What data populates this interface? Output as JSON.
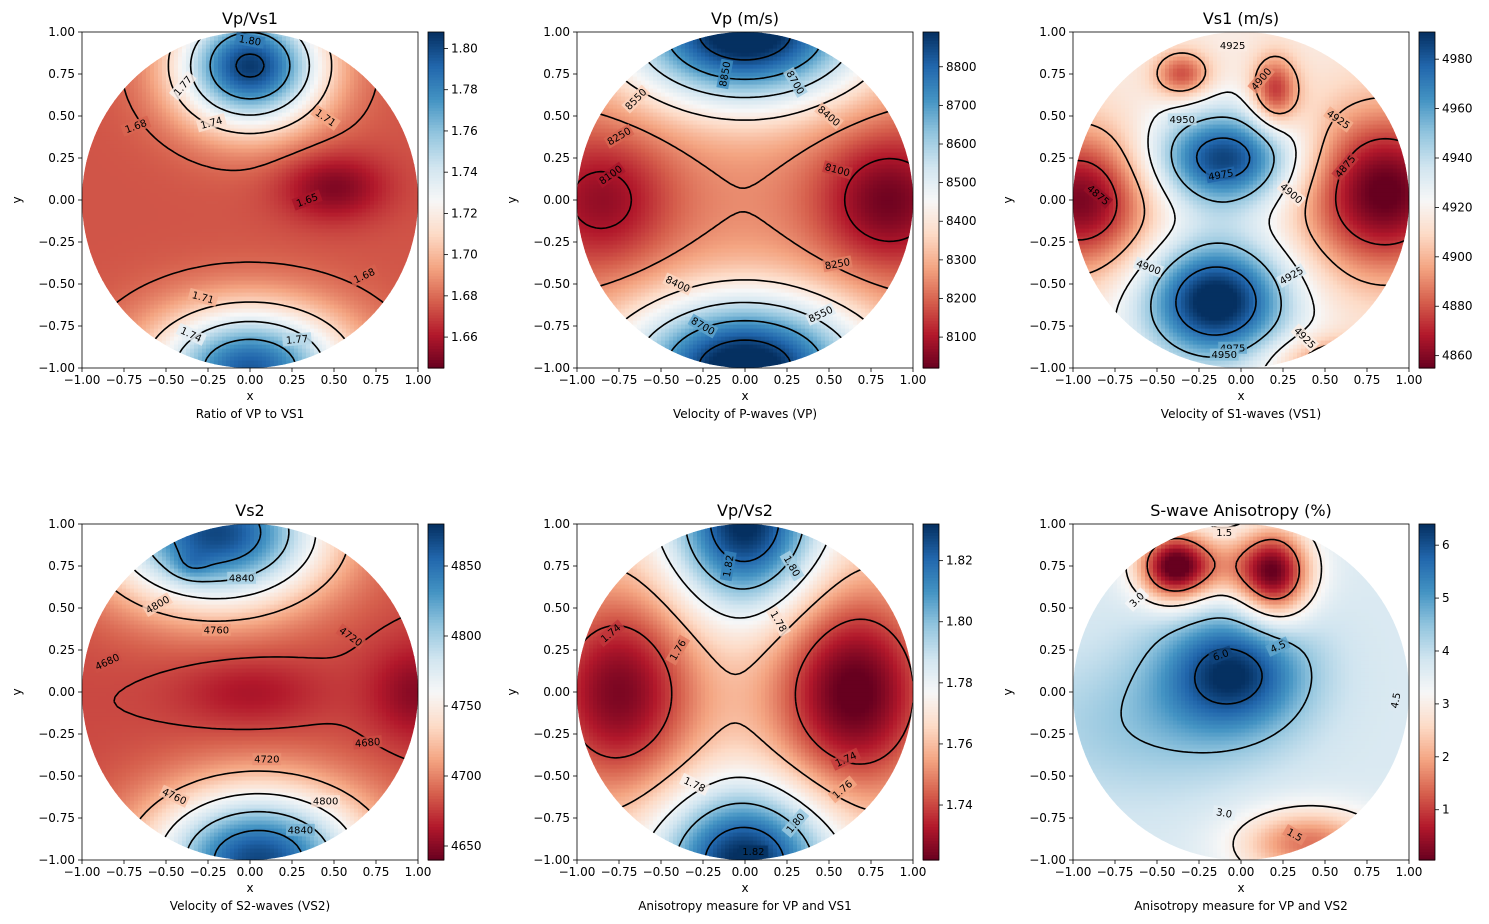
{
  "colormap": [
    "#67001f",
    "#b2182b",
    "#d6604d",
    "#f4a582",
    "#fddbc7",
    "#f7f7f7",
    "#d1e5f0",
    "#92c5de",
    "#4393c3",
    "#2166ac",
    "#053061"
  ],
  "chart_data": [
    {
      "type": "heatmap",
      "title": "Vp/Vs1",
      "xlabel": "x",
      "ylabel": "y",
      "caption": "Ratio of VP to VS1",
      "xlim": [
        -1,
        1
      ],
      "ylim": [
        -1,
        1
      ],
      "xticks": [
        "−1.00",
        "−0.75",
        "−0.50",
        "−0.25",
        "0.00",
        "0.25",
        "0.50",
        "0.75",
        "1.00"
      ],
      "yticks": [
        "−1.00",
        "−0.75",
        "−0.50",
        "−0.25",
        "0.00",
        "0.25",
        "0.50",
        "0.75",
        "1.00"
      ],
      "colorbar": {
        "min": 1.645,
        "max": 1.808,
        "ticks": [
          1.66,
          1.68,
          1.7,
          1.72,
          1.74,
          1.76,
          1.78,
          1.8
        ],
        "labels": [
          "1.66",
          "1.68",
          "1.70",
          "1.72",
          "1.74",
          "1.76",
          "1.78",
          "1.80"
        ]
      },
      "field": {
        "base": 1.675,
        "terms": [
          [
            0,
            0.8,
            0.13,
            0.3,
            0.25
          ],
          [
            0,
            -1.0,
            0.12,
            0.4,
            0.25
          ],
          [
            0.5,
            0.08,
            -0.025,
            0.22,
            0.14
          ]
        ]
      },
      "contour_levels": [
        1.65,
        1.68,
        1.71,
        1.74,
        1.77,
        1.8
      ],
      "contour_labels": [
        {
          "text": "1.80",
          "x": 0.0,
          "y": 0.95,
          "rot": 10
        },
        {
          "text": "1.77",
          "x": -0.4,
          "y": 0.68,
          "rot": -50
        },
        {
          "text": "1.74",
          "x": -0.23,
          "y": 0.46,
          "rot": -15
        },
        {
          "text": "1.71",
          "x": 0.45,
          "y": 0.49,
          "rot": 35
        },
        {
          "text": "1.68",
          "x": -0.68,
          "y": 0.44,
          "rot": -20
        },
        {
          "text": "1.65",
          "x": 0.34,
          "y": 0.0,
          "rot": -20
        },
        {
          "text": "1.68",
          "x": 0.68,
          "y": -0.45,
          "rot": -25
        },
        {
          "text": "1.71",
          "x": -0.28,
          "y": -0.58,
          "rot": 15
        },
        {
          "text": "1.74",
          "x": -0.35,
          "y": -0.8,
          "rot": 25
        },
        {
          "text": "1.77",
          "x": 0.28,
          "y": -0.83,
          "rot": -5
        }
      ]
    },
    {
      "type": "heatmap",
      "title": "Vp (m/s)",
      "xlabel": "x",
      "ylabel": "y",
      "caption": "Velocity of P-waves (VP)",
      "xlim": [
        -1,
        1
      ],
      "ylim": [
        -1,
        1
      ],
      "xticks": [
        "−1.00",
        "−0.75",
        "−0.50",
        "−0.25",
        "0.00",
        "0.25",
        "0.50",
        "0.75",
        "1.00"
      ],
      "yticks": [
        "−1.00",
        "−0.75",
        "−0.50",
        "−0.25",
        "0.00",
        "0.25",
        "0.50",
        "0.75",
        "1.00"
      ],
      "colorbar": {
        "min": 8020,
        "max": 8890,
        "ticks": [
          8100,
          8200,
          8300,
          8400,
          8500,
          8600,
          8700,
          8800
        ],
        "labels": [
          "8100",
          "8200",
          "8300",
          "8400",
          "8500",
          "8600",
          "8700",
          "8800"
        ]
      },
      "field": {
        "base": 8250,
        "terms": [
          [
            0,
            1.0,
            700,
            0.5,
            0.3
          ],
          [
            0,
            -1.0,
            700,
            0.5,
            0.3
          ],
          [
            0.85,
            0,
            -220,
            0.3,
            0.3
          ],
          [
            -0.85,
            0,
            -180,
            0.3,
            0.3
          ]
        ]
      },
      "contour_levels": [
        8100,
        8250,
        8400,
        8550,
        8700,
        8850
      ],
      "contour_labels": [
        {
          "text": "8850",
          "x": -0.12,
          "y": 0.75,
          "rot": -80
        },
        {
          "text": "8700",
          "x": 0.3,
          "y": 0.7,
          "rot": 60
        },
        {
          "text": "8550",
          "x": -0.65,
          "y": 0.6,
          "rot": -45
        },
        {
          "text": "8400",
          "x": 0.5,
          "y": 0.5,
          "rot": 40
        },
        {
          "text": "8250",
          "x": -0.75,
          "y": 0.38,
          "rot": -30
        },
        {
          "text": "8100",
          "x": 0.55,
          "y": 0.18,
          "rot": 15
        },
        {
          "text": "8100",
          "x": -0.8,
          "y": 0.15,
          "rot": -35
        },
        {
          "text": "8400",
          "x": -0.4,
          "y": -0.5,
          "rot": 25
        },
        {
          "text": "8250",
          "x": 0.55,
          "y": -0.38,
          "rot": -10
        },
        {
          "text": "8550",
          "x": 0.45,
          "y": -0.68,
          "rot": -25
        },
        {
          "text": "8700",
          "x": -0.25,
          "y": -0.75,
          "rot": 30
        }
      ]
    },
    {
      "type": "heatmap",
      "title": "Vs1 (m/s)",
      "xlabel": "x",
      "ylabel": "y",
      "caption": "Velocity of S1-waves (VS1)",
      "xlim": [
        -1,
        1
      ],
      "ylim": [
        -1,
        1
      ],
      "xticks": [
        "−1.00",
        "−0.75",
        "−0.50",
        "−0.25",
        "0.00",
        "0.25",
        "0.50",
        "0.75",
        "1.00"
      ],
      "yticks": [
        "−1.00",
        "−0.75",
        "−0.50",
        "−0.25",
        "0.00",
        "0.25",
        "0.50",
        "0.75",
        "1.00"
      ],
      "colorbar": {
        "min": 4855,
        "max": 4991,
        "ticks": [
          4860,
          4880,
          4900,
          4920,
          4940,
          4960,
          4980
        ],
        "labels": [
          "4860",
          "4880",
          "4900",
          "4920",
          "4940",
          "4960",
          "4980"
        ]
      },
      "field": {
        "base": 4918,
        "terms": [
          [
            -0.1,
            0.25,
            70,
            0.3,
            0.2
          ],
          [
            -0.15,
            -0.6,
            80,
            0.3,
            0.25
          ],
          [
            -0.95,
            0,
            -60,
            0.3,
            0.3
          ],
          [
            0.85,
            0.05,
            -65,
            0.35,
            0.35
          ],
          [
            -0.35,
            0.75,
            -40,
            0.12,
            0.1
          ],
          [
            0.2,
            0.65,
            -45,
            0.1,
            0.15
          ],
          [
            0.55,
            -0.95,
            -30,
            0.25,
            0.1
          ]
        ]
      },
      "contour_levels": [
        4875,
        4900,
        4925,
        4950,
        4975
      ],
      "contour_labels": [
        {
          "text": "4925",
          "x": -0.05,
          "y": 0.92,
          "rot": 0
        },
        {
          "text": "4900",
          "x": 0.12,
          "y": 0.72,
          "rot": -50
        },
        {
          "text": "4950",
          "x": -0.35,
          "y": 0.48,
          "rot": 0
        },
        {
          "text": "4925",
          "x": 0.58,
          "y": 0.48,
          "rot": 35
        },
        {
          "text": "4975",
          "x": -0.12,
          "y": 0.15,
          "rot": -10
        },
        {
          "text": "4875",
          "x": 0.62,
          "y": 0.2,
          "rot": -50
        },
        {
          "text": "4900",
          "x": 0.3,
          "y": 0.04,
          "rot": 40
        },
        {
          "text": "4875",
          "x": -0.85,
          "y": 0.03,
          "rot": 40
        },
        {
          "text": "4900",
          "x": -0.55,
          "y": -0.4,
          "rot": 20
        },
        {
          "text": "4925",
          "x": 0.3,
          "y": -0.45,
          "rot": -30
        },
        {
          "text": "4975",
          "x": -0.05,
          "y": -0.88,
          "rot": 0
        },
        {
          "text": "4950",
          "x": -0.1,
          "y": -0.92,
          "rot": 0
        },
        {
          "text": "4925",
          "x": 0.38,
          "y": -0.82,
          "rot": 45
        }
      ]
    },
    {
      "type": "heatmap",
      "title": "Vs2",
      "xlabel": "x",
      "ylabel": "y",
      "caption": "Velocity of S2-waves (VS2)",
      "xlim": [
        -1,
        1
      ],
      "ylim": [
        -1,
        1
      ],
      "xticks": [
        "−1.00",
        "−0.75",
        "−0.50",
        "−0.25",
        "0.00",
        "0.25",
        "0.50",
        "0.75",
        "1.00"
      ],
      "yticks": [
        "−1.00",
        "−0.75",
        "−0.50",
        "−0.25",
        "0.00",
        "0.25",
        "0.50",
        "0.75",
        "1.00"
      ],
      "colorbar": {
        "min": 4640,
        "max": 4880,
        "ticks": [
          4650,
          4700,
          4750,
          4800,
          4850
        ],
        "labels": [
          "4650",
          "4700",
          "4750",
          "4800",
          "4850"
        ]
      },
      "field": {
        "base": 4680,
        "terms": [
          [
            -0.2,
            0.95,
            190,
            0.45,
            0.3
          ],
          [
            0.05,
            -1.0,
            190,
            0.45,
            0.3
          ],
          [
            -0.35,
            0.75,
            20,
            0.08,
            0.06
          ],
          [
            1.0,
            0,
            -30,
            0.2,
            0.2
          ],
          [
            0,
            0,
            -20,
            0.3,
            0.15
          ]
        ]
      },
      "contour_levels": [
        4680,
        4720,
        4760,
        4800,
        4840
      ],
      "contour_labels": [
        {
          "text": "4840",
          "x": -0.05,
          "y": 0.68,
          "rot": 0
        },
        {
          "text": "4800",
          "x": -0.55,
          "y": 0.52,
          "rot": -30
        },
        {
          "text": "4760",
          "x": -0.2,
          "y": 0.37,
          "rot": 0
        },
        {
          "text": "4720",
          "x": 0.6,
          "y": 0.33,
          "rot": 35
        },
        {
          "text": "4680",
          "x": -0.85,
          "y": 0.18,
          "rot": -25
        },
        {
          "text": "4680",
          "x": 0.7,
          "y": -0.3,
          "rot": -5
        },
        {
          "text": "4720",
          "x": 0.1,
          "y": -0.4,
          "rot": 0
        },
        {
          "text": "4760",
          "x": -0.45,
          "y": -0.62,
          "rot": 25
        },
        {
          "text": "4800",
          "x": 0.45,
          "y": -0.65,
          "rot": 0
        },
        {
          "text": "4840",
          "x": 0.3,
          "y": -0.82,
          "rot": 0
        }
      ]
    },
    {
      "type": "heatmap",
      "title": "Vp/Vs2",
      "xlabel": "x",
      "ylabel": "y",
      "caption": "Anisotropy measure for VP and VS1",
      "xlim": [
        -1,
        1
      ],
      "ylim": [
        -1,
        1
      ],
      "xticks": [
        "−1.00",
        "−0.75",
        "−0.50",
        "−0.25",
        "0.00",
        "0.25",
        "0.50",
        "0.75",
        "1.00"
      ],
      "yticks": [
        "−1.00",
        "−0.75",
        "−0.50",
        "−0.25",
        "0.00",
        "0.25",
        "0.50",
        "0.75",
        "1.00"
      ],
      "colorbar": {
        "min": 1.722,
        "max": 1.832,
        "ticks": [
          1.74,
          1.76,
          1.78,
          1.8,
          1.82
        ],
        "labels": [
          "1.74",
          "1.76",
          "1.78",
          "1.80",
          "1.82"
        ]
      },
      "field": {
        "base": 1.77,
        "terms": [
          [
            0,
            1.0,
            0.065,
            0.3,
            0.35
          ],
          [
            0,
            -1.0,
            0.065,
            0.35,
            0.3
          ],
          [
            0.65,
            0,
            -0.05,
            0.35,
            0.45
          ],
          [
            -0.75,
            0,
            -0.045,
            0.35,
            0.45
          ]
        ]
      },
      "contour_levels": [
        1.74,
        1.76,
        1.78,
        1.8,
        1.82
      ],
      "contour_labels": [
        {
          "text": "1.82",
          "x": -0.1,
          "y": 0.75,
          "rot": -80
        },
        {
          "text": "1.80",
          "x": 0.28,
          "y": 0.75,
          "rot": 60
        },
        {
          "text": "1.78",
          "x": 0.2,
          "y": 0.42,
          "rot": 60
        },
        {
          "text": "1.74",
          "x": -0.8,
          "y": 0.35,
          "rot": -40
        },
        {
          "text": "1.76",
          "x": -0.4,
          "y": 0.25,
          "rot": -60
        },
        {
          "text": "1.74",
          "x": 0.6,
          "y": -0.4,
          "rot": -25
        },
        {
          "text": "1.76",
          "x": 0.58,
          "y": -0.58,
          "rot": -40
        },
        {
          "text": "1.78",
          "x": -0.3,
          "y": -0.55,
          "rot": 25
        },
        {
          "text": "1.80",
          "x": 0.3,
          "y": -0.78,
          "rot": -50
        },
        {
          "text": "1.82",
          "x": 0.05,
          "y": -0.95,
          "rot": 0
        }
      ]
    },
    {
      "type": "heatmap",
      "title": "S-wave Anisotropy (%)",
      "xlabel": "x",
      "ylabel": "y",
      "caption": "Anisotropy measure for VP and VS2",
      "xlim": [
        -1,
        1
      ],
      "ylim": [
        -1,
        1
      ],
      "xticks": [
        "−1.00",
        "−0.75",
        "−0.50",
        "−0.25",
        "0.00",
        "0.25",
        "0.50",
        "0.75",
        "1.00"
      ],
      "yticks": [
        "−1.00",
        "−0.75",
        "−0.50",
        "−0.25",
        "0.00",
        "0.25",
        "0.50",
        "0.75",
        "1.00"
      ],
      "colorbar": {
        "min": 0.05,
        "max": 6.4,
        "ticks": [
          1,
          2,
          3,
          4,
          5,
          6
        ],
        "labels": [
          "1",
          "2",
          "3",
          "4",
          "5",
          "6"
        ]
      },
      "field": {
        "base": 3.7,
        "terms": [
          [
            -0.05,
            0.12,
            2.6,
            0.3,
            0.25
          ],
          [
            -0.4,
            0.75,
            -3.2,
            0.15,
            0.15
          ],
          [
            0.2,
            0.7,
            -3.0,
            0.15,
            0.2
          ],
          [
            -0.1,
            0.75,
            -1.3,
            0.3,
            0.15
          ],
          [
            0.4,
            -0.9,
            -2.2,
            0.3,
            0.15
          ],
          [
            -0.6,
            -0.2,
            0.7,
            0.5,
            0.3
          ]
        ]
      },
      "contour_levels": [
        1.5,
        3.0,
        4.5,
        6.0
      ],
      "contour_labels": [
        {
          "text": "1.5",
          "x": -0.1,
          "y": 0.95,
          "rot": 0
        },
        {
          "text": "3.0",
          "x": -0.62,
          "y": 0.55,
          "rot": -45
        },
        {
          "text": "4.5",
          "x": 0.22,
          "y": 0.27,
          "rot": -25
        },
        {
          "text": "6.0",
          "x": -0.12,
          "y": 0.22,
          "rot": -20
        },
        {
          "text": "4.5",
          "x": 0.92,
          "y": -0.05,
          "rot": -80
        },
        {
          "text": "3.0",
          "x": -0.1,
          "y": -0.72,
          "rot": 10
        },
        {
          "text": "1.5",
          "x": 0.32,
          "y": -0.85,
          "rot": 30
        }
      ]
    }
  ]
}
